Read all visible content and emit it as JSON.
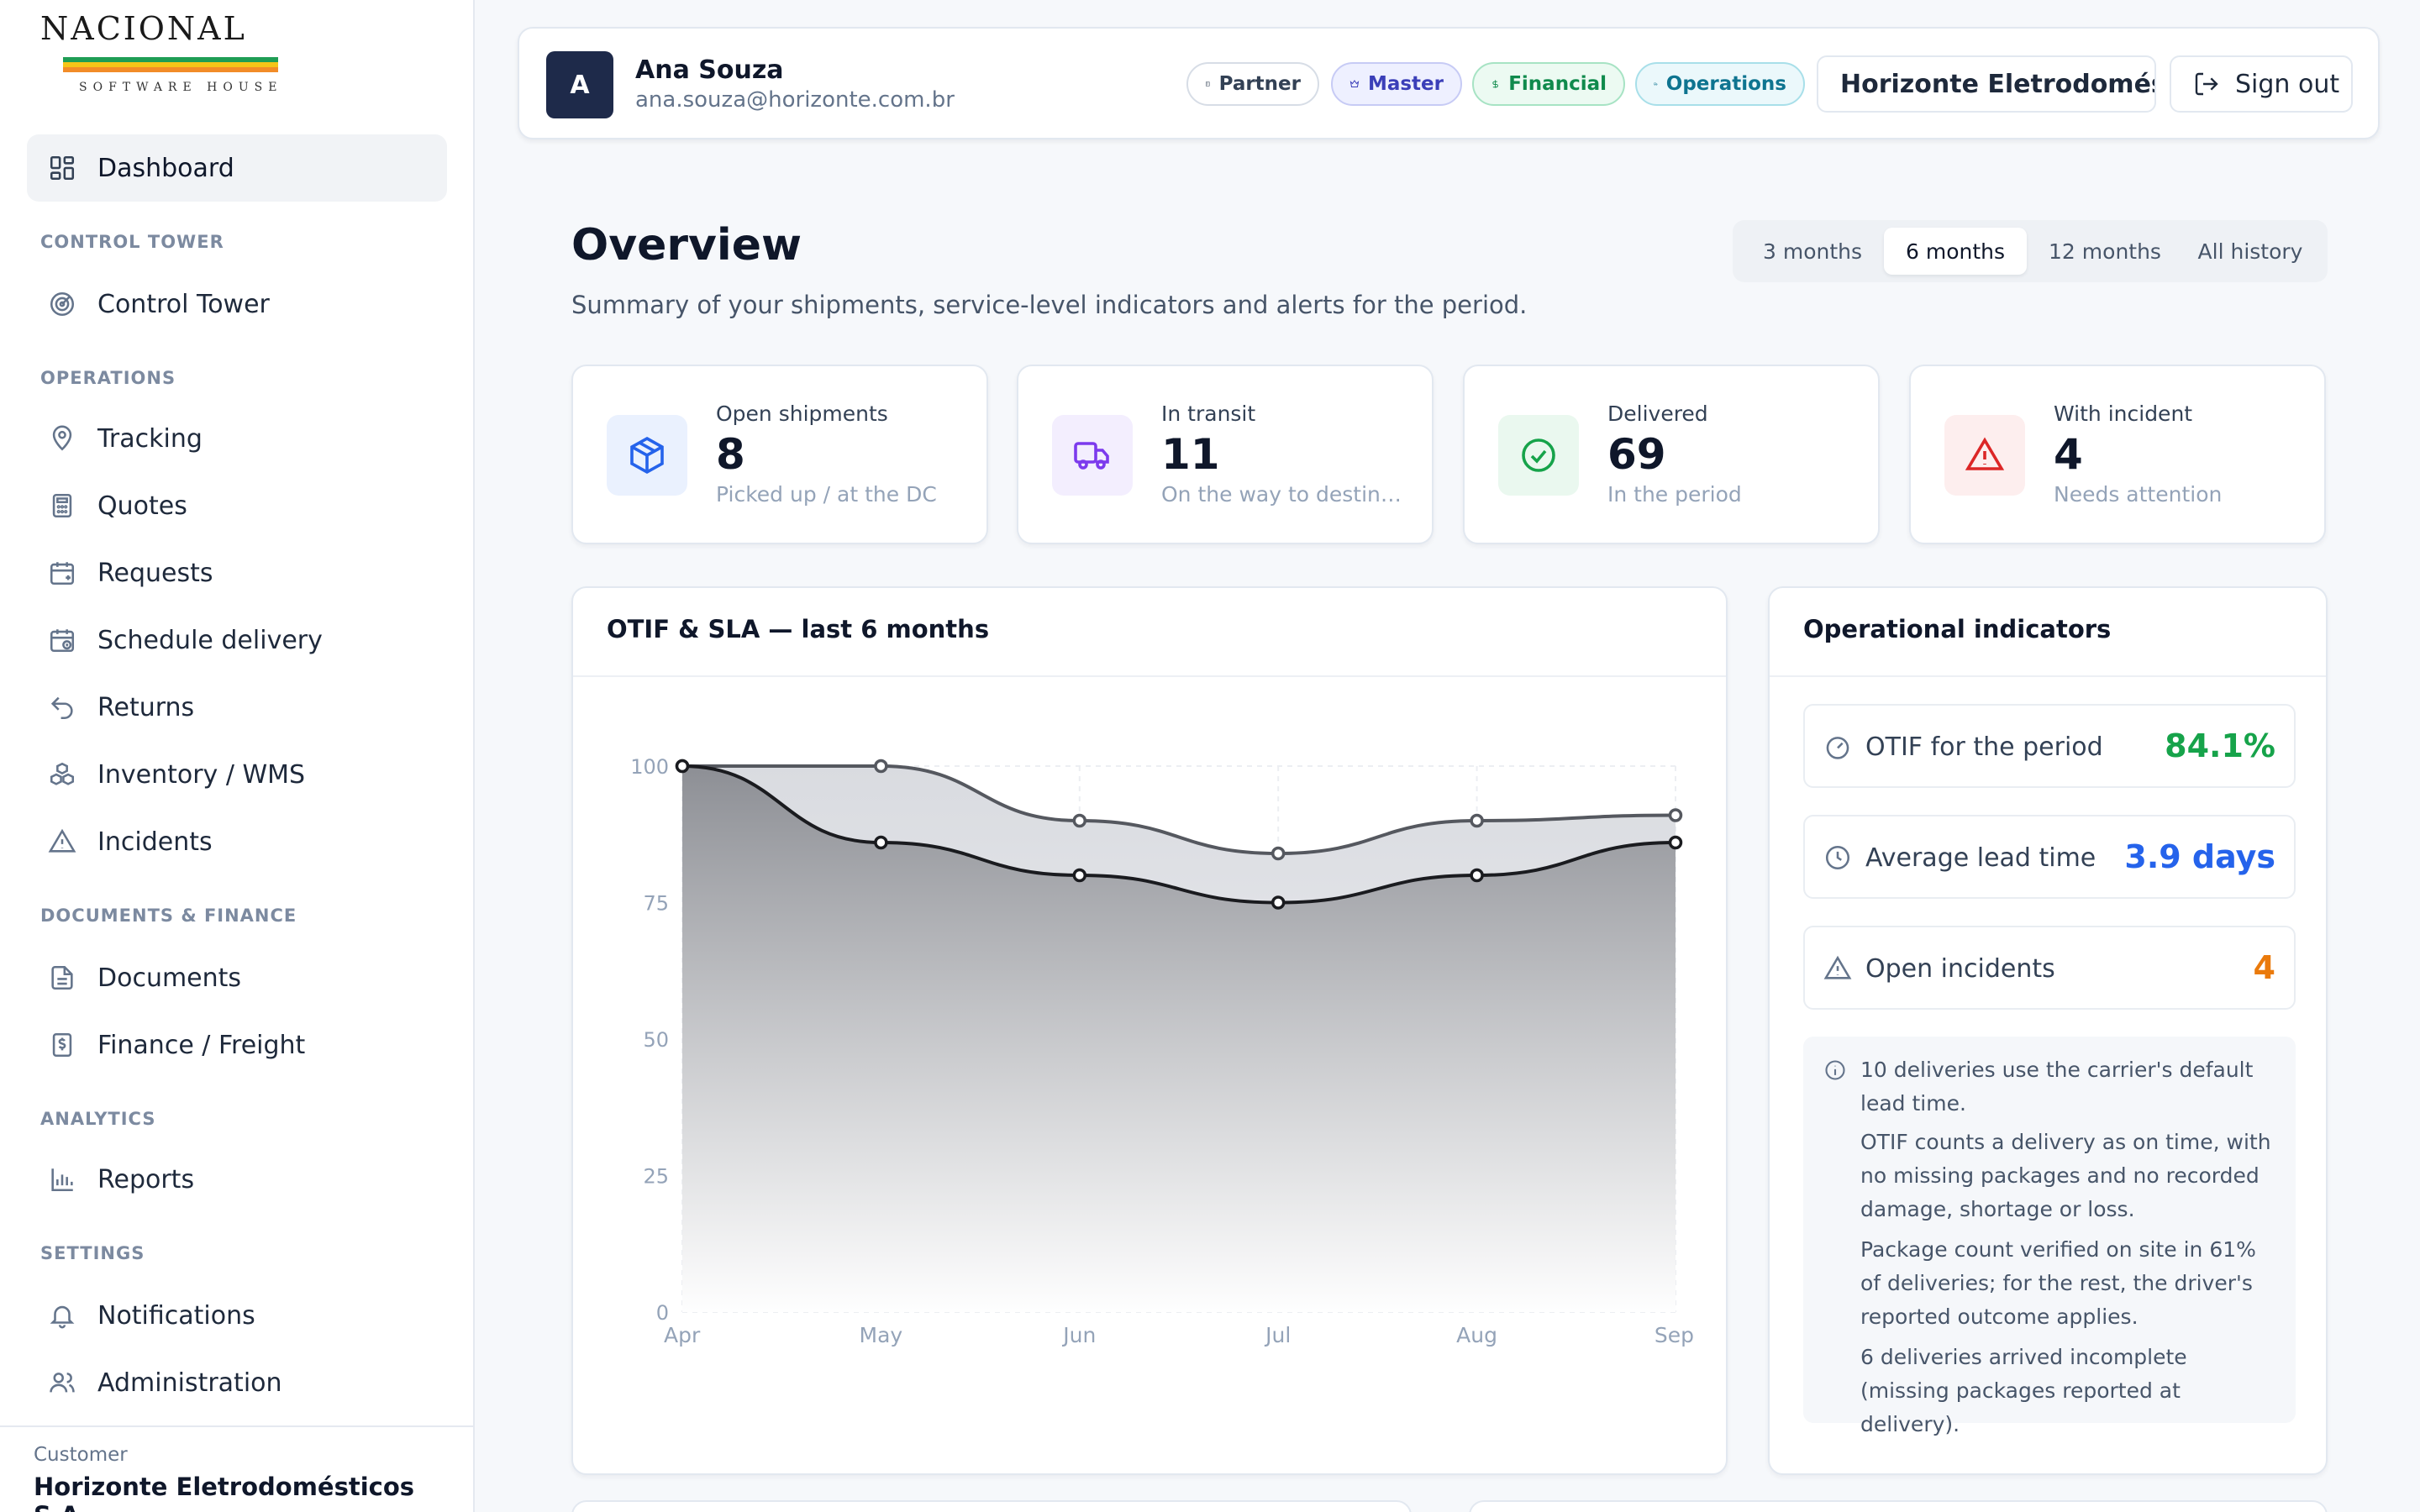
{
  "brand": {
    "logo_text": "NACIONAL",
    "logo_sub": "SOFTWARE HOUSE",
    "stripe_green": "#1f9d55",
    "stripe_yellow": "#f5c518",
    "stripe_orange": "#f28c28"
  },
  "sidebar": {
    "dashboard": "Dashboard",
    "sections": {
      "control_tower": "CONTROL TOWER",
      "operations": "OPERATIONS",
      "documents_finance": "DOCUMENTS & FINANCE",
      "analytics": "ANALYTICS",
      "settings": "SETTINGS"
    },
    "items": {
      "control_tower": "Control Tower",
      "tracking": "Tracking",
      "quotes": "Quotes",
      "requests": "Requests",
      "schedule_delivery": "Schedule delivery",
      "returns": "Returns",
      "inventory": "Inventory / WMS",
      "incidents": "Incidents",
      "documents": "Documents",
      "finance": "Finance / Freight",
      "reports": "Reports",
      "notifications": "Notifications",
      "administration": "Administration"
    },
    "customer_caption": "Customer",
    "customer_name": "Horizonte Eletrodomésticos S.A."
  },
  "header": {
    "avatar_initial": "A",
    "user_name": "Ana Souza",
    "user_email": "ana.souza@horizonte.com.br",
    "badges": {
      "partner": "Partner",
      "master": "Master",
      "financial": "Financial",
      "operations": "Operations"
    },
    "company_select": "Horizonte Eletrodomés...",
    "sign_out": "Sign out"
  },
  "overview": {
    "title": "Overview",
    "subtitle": "Summary of your shipments, service-level indicators and alerts for the period.",
    "ranges": [
      "3 months",
      "6 months",
      "12 months",
      "All history"
    ],
    "selected_range": "6 months"
  },
  "kpis": [
    {
      "label": "Open shipments",
      "value": "8",
      "hint": "Picked up / at the DC",
      "icon": "package-icon",
      "color": "#2563eb"
    },
    {
      "label": "In transit",
      "value": "11",
      "hint": "On the way to destina...",
      "icon": "truck-icon",
      "color": "#7c3aed"
    },
    {
      "label": "Delivered",
      "value": "69",
      "hint": "In the period",
      "icon": "check-circle-icon",
      "color": "#16a34a"
    },
    {
      "label": "With incident",
      "value": "4",
      "hint": "Needs attention",
      "icon": "alert-triangle-icon",
      "color": "#dc2626"
    }
  ],
  "chart_card_title": "OTIF & SLA — last 6 months",
  "chart_data": {
    "type": "area",
    "categories": [
      "Apr",
      "May",
      "Jun",
      "Jul",
      "Aug",
      "Sep"
    ],
    "series": [
      {
        "values": [
          100,
          100,
          90,
          84,
          90,
          91
        ]
      },
      {
        "values": [
          100,
          86,
          80,
          75,
          80,
          86
        ]
      }
    ],
    "ylim": [
      0,
      100
    ],
    "yticks": [
      0,
      25,
      50,
      75,
      100
    ],
    "grid": true
  },
  "indicators": {
    "title": "Operational indicators",
    "rows": [
      {
        "label": "OTIF for the period",
        "value": "84.1%",
        "color": "#16a34a",
        "icon": "gauge-icon"
      },
      {
        "label": "Average lead time",
        "value": "3.9 days",
        "color": "#2563eb",
        "icon": "clock-icon"
      },
      {
        "label": "Open incidents",
        "value": "4",
        "color": "#ea7a0c",
        "icon": "alert-triangle-icon"
      }
    ],
    "notes": [
      "10 deliveries use the carrier's default lead time.",
      "OTIF counts a delivery as on time, with no missing packages and no recorded damage, shortage or loss.",
      "Package count verified on site in 61% of deliveries; for the rest, the driver's reported outcome applies.",
      "6 deliveries arrived incomplete (missing packages reported at delivery)."
    ]
  }
}
